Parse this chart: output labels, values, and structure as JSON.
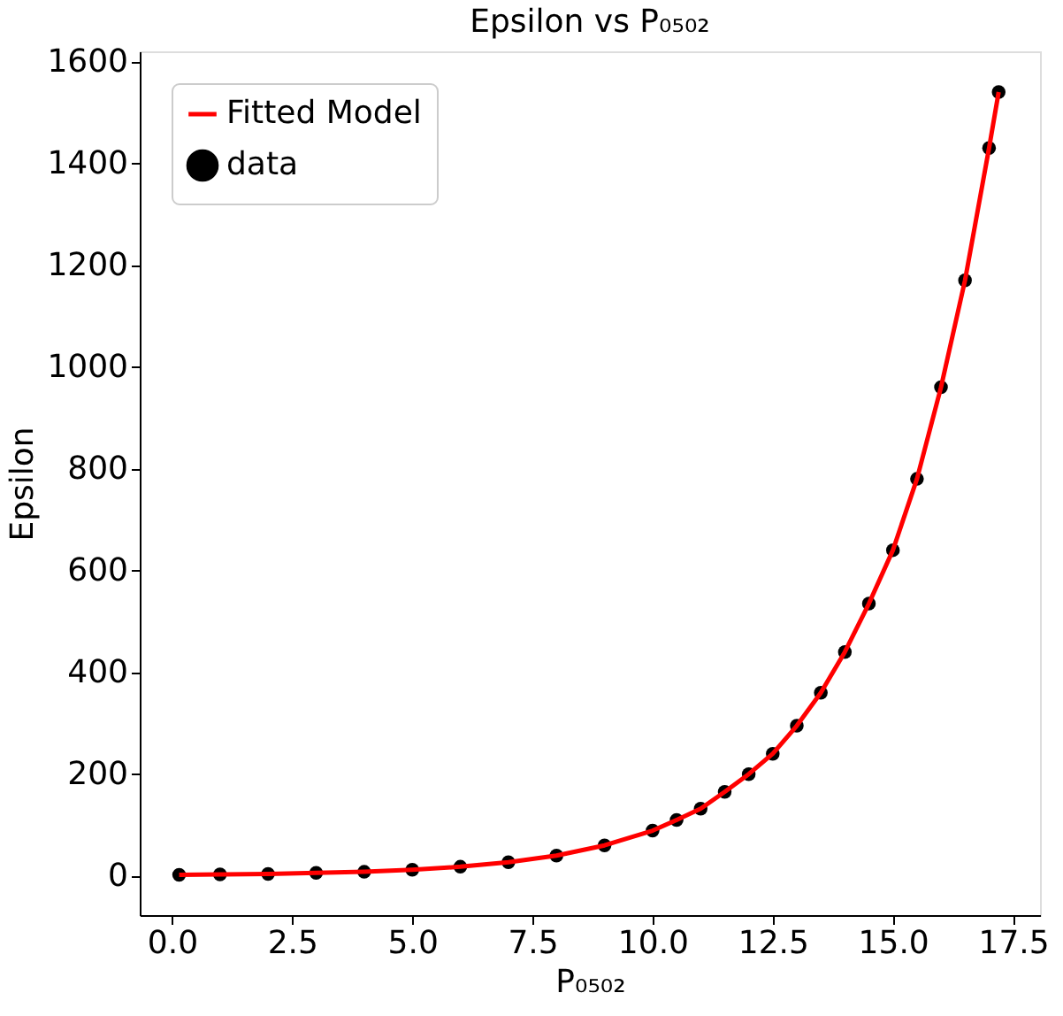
{
  "chart_data": {
    "type": "scatter",
    "title": "Epsilon vs P₀₅₀₂",
    "xlabel": "P₀₅₀₂",
    "ylabel": "Epsilon",
    "x": [
      0.15,
      1,
      2,
      3,
      4,
      5,
      6,
      7,
      8,
      9,
      10,
      10.5,
      11,
      11.5,
      12,
      12.5,
      13,
      13.5,
      14,
      14.5,
      15,
      15.5,
      16,
      16.5,
      17,
      17.2
    ],
    "series": [
      {
        "name": "Fitted Model",
        "type": "line",
        "color": "#ff0000",
        "values": [
          2,
          3,
          4,
          6,
          8,
          12,
          18,
          27,
          40,
          60,
          89,
          110,
          132,
          165,
          200,
          240,
          295,
          360,
          440,
          535,
          640,
          780,
          960,
          1170,
          1430,
          1540
        ]
      },
      {
        "name": "data",
        "color": "#000000",
        "marker": "circle",
        "values": [
          2,
          3,
          4,
          6,
          8,
          12,
          18,
          27,
          40,
          60,
          89,
          110,
          132,
          165,
          200,
          240,
          295,
          360,
          440,
          535,
          640,
          780,
          960,
          1170,
          1430,
          1540
        ]
      }
    ],
    "xlim": [
      -0.67,
      18.06
    ],
    "xticks": [
      {
        "value": 0,
        "label": "0.0"
      },
      {
        "value": 2.5,
        "label": "2.5"
      },
      {
        "value": 5,
        "label": "5.0"
      },
      {
        "value": 7.5,
        "label": "7.5"
      },
      {
        "value": 10,
        "label": "10.0"
      },
      {
        "value": 12.5,
        "label": "12.5"
      },
      {
        "value": 15,
        "label": "15.0"
      },
      {
        "value": 17.5,
        "label": "17.5"
      }
    ],
    "ylim": [
      -77,
      1620
    ],
    "yticks": [
      0,
      200,
      400,
      600,
      800,
      1000,
      1200,
      1400,
      1600
    ],
    "grid": false,
    "legend": "top left"
  }
}
